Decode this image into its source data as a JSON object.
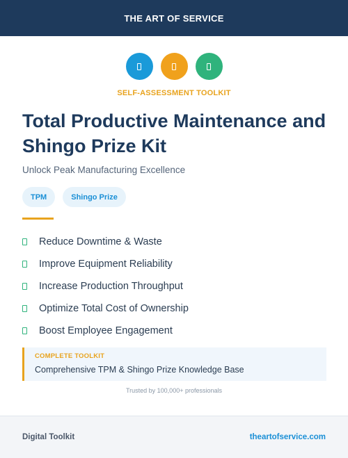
{
  "header": {
    "brand": "THE ART OF SERVICE"
  },
  "icons": [
    {
      "name": "document-icon",
      "color": "#1a9ad9"
    },
    {
      "name": "clipboard-icon",
      "color": "#f0a11c"
    },
    {
      "name": "checklist-icon",
      "color": "#2fb37c"
    }
  ],
  "kicker": "SELF-ASSESSMENT TOOLKIT",
  "title": "Total Productive Maintenance and Shingo Prize Kit",
  "subtitle": "Unlock Peak Manufacturing Excellence",
  "tags": [
    "TPM",
    "Shingo Prize"
  ],
  "benefits": [
    "Reduce Downtime & Waste",
    "Improve Equipment Reliability",
    "Increase Production Throughput",
    "Optimize Total Cost of Ownership",
    "Boost Employee Engagement"
  ],
  "callout": {
    "label": "COMPLETE TOOLKIT",
    "text": "Comprehensive TPM & Shingo Prize Knowledge Base"
  },
  "trust": "Trusted by 100,000+ professionals",
  "footer": {
    "left": "Digital Toolkit",
    "right": "theartofservice.com"
  },
  "colors": {
    "navy": "#1e3a5c",
    "accent_orange": "#e8a31e",
    "link_blue": "#1a8fd6",
    "check_green": "#2fb37c"
  }
}
